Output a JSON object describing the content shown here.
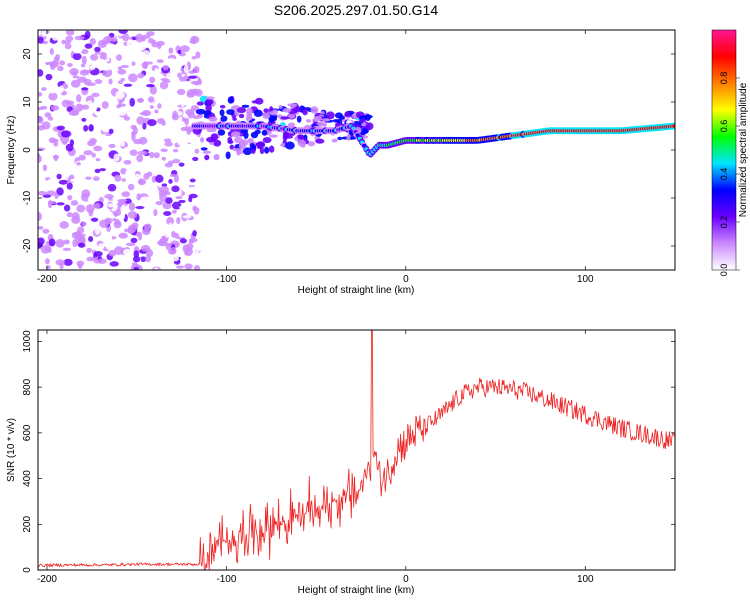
{
  "title": "S206.2025.297.01.50.G14",
  "chart_data": [
    {
      "type": "heatmap",
      "title": "S206.2025.297.01.50.G14",
      "xlabel": "Height of straight line (km)",
      "ylabel": "Frequency (Hz)",
      "xlim": [
        -205,
        150
      ],
      "ylim": [
        -25,
        25
      ],
      "xticks": [
        -200,
        -100,
        0,
        100
      ],
      "yticks": [
        -20,
        -10,
        0,
        10,
        20
      ],
      "colorbar": {
        "label": "Normalized spectral amplitude",
        "range": [
          0.0,
          1.0
        ],
        "ticks": [
          0.0,
          0.2,
          0.4,
          0.6,
          0.8
        ],
        "colors": [
          "#ffffff",
          "#cc88ff",
          "#6a00ff",
          "#0000ff",
          "#00e5ff",
          "#00ff00",
          "#ffff00",
          "#ff8000",
          "#ff0000",
          "#ff1493"
        ]
      },
      "ridge": {
        "description": "dominant frequency ridge vs height",
        "x": [
          -120,
          -100,
          -80,
          -60,
          -40,
          -30,
          -20,
          -15,
          -10,
          0,
          20,
          40,
          60,
          80,
          100,
          120,
          150
        ],
        "y": [
          5,
          5,
          5,
          4,
          4,
          5,
          -1,
          1,
          1,
          2,
          2,
          2,
          3,
          4,
          4,
          4,
          5
        ]
      },
      "noise_region": {
        "x_from": -205,
        "x_to": -115,
        "freq_from": -25,
        "freq_to": 25,
        "amplitude": 0.2
      }
    },
    {
      "type": "line",
      "xlabel": "Height of straight line (km)",
      "ylabel": "SNR (10 * v/v)",
      "xlim": [
        -205,
        150
      ],
      "ylim": [
        0,
        1050
      ],
      "xticks": [
        -200,
        -100,
        0,
        100
      ],
      "yticks": [
        0,
        200,
        400,
        600,
        800,
        1000
      ],
      "color": "#ee2222",
      "series": [
        {
          "name": "SNR",
          "x": [
            -205,
            -190,
            -170,
            -150,
            -130,
            -115,
            -110,
            -105,
            -100,
            -90,
            -80,
            -70,
            -60,
            -50,
            -40,
            -30,
            -25,
            -20,
            -18,
            -15,
            -10,
            -5,
            0,
            5,
            10,
            20,
            30,
            40,
            50,
            60,
            70,
            80,
            90,
            100,
            110,
            120,
            130,
            140,
            150
          ],
          "y": [
            20,
            22,
            22,
            25,
            25,
            25,
            45,
            100,
            130,
            160,
            180,
            210,
            230,
            270,
            300,
            330,
            360,
            450,
            550,
            400,
            420,
            530,
            560,
            600,
            620,
            680,
            760,
            800,
            800,
            790,
            770,
            740,
            710,
            680,
            650,
            620,
            600,
            580,
            560
          ]
        }
      ],
      "noise_amplitude": [
        {
          "x_from": -205,
          "x_to": -115,
          "amp": 10
        },
        {
          "x_from": -115,
          "x_to": -20,
          "amp": 160
        },
        {
          "x_from": -20,
          "x_to": 10,
          "amp": 140
        },
        {
          "x_from": 10,
          "x_to": 150,
          "amp": 70
        }
      ],
      "spike": {
        "x": -19,
        "y": 1050
      }
    }
  ]
}
